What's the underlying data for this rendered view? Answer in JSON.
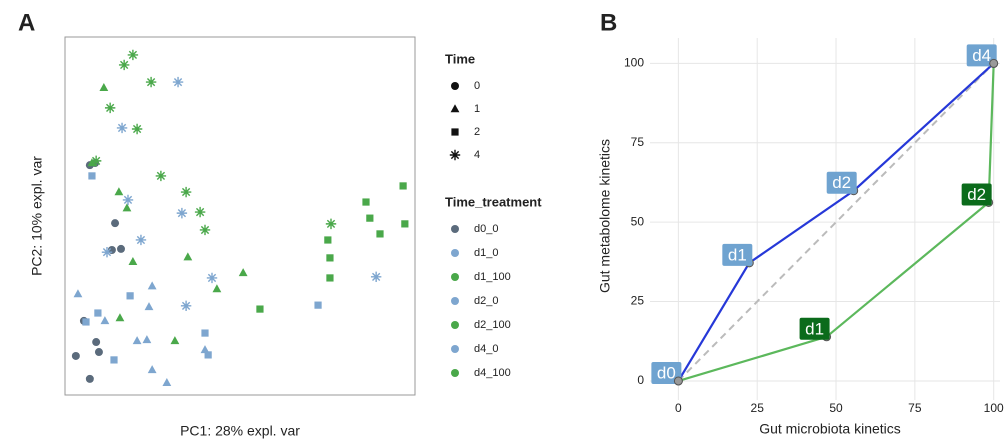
{
  "chart_data": [
    {
      "type": "scatter",
      "panel_label": "A",
      "x_label": "PC1: 28% expl. var",
      "y_label": "PC2: 10% expl. var",
      "xlim": [
        0,
        100
      ],
      "ylim": [
        0,
        100
      ],
      "shape_legend": {
        "title": "Time",
        "items": [
          {
            "label": "0",
            "marker": "circle"
          },
          {
            "label": "1",
            "marker": "triangle"
          },
          {
            "label": "2",
            "marker": "square"
          },
          {
            "label": "4",
            "marker": "asterisk"
          }
        ]
      },
      "legend_title": "Time_treatment",
      "series": [
        {
          "name": "d0_0",
          "color": "#5b6b7c",
          "marker": "circle",
          "x": [
            7.1,
            8.6,
            14.3,
            13.4,
            16.0,
            5.4,
            8.9,
            9.7,
            3.1,
            7.1
          ],
          "values": [
            64.2,
            64.8,
            48.0,
            40.5,
            40.8,
            20.7,
            14.8,
            12.0,
            10.9,
            4.5
          ]
        },
        {
          "name": "d1_0",
          "color": "#7ea6cf",
          "marker": "triangle",
          "x": [
            3.7,
            11.4,
            24.9,
            24.0,
            23.4,
            20.6,
            40.0,
            24.9,
            29.1
          ],
          "values": [
            28.2,
            20.7,
            30.4,
            24.6,
            15.4,
            15.1,
            12.6,
            7.0,
            3.4
          ]
        },
        {
          "name": "d1_100",
          "color": "#4aa84a",
          "marker": "triangle",
          "x": [
            11.1,
            7.7,
            15.4,
            17.7,
            19.4,
            35.1,
            43.4,
            50.9,
            31.4,
            15.7
          ],
          "values": [
            85.8,
            64.8,
            56.7,
            52.2,
            37.2,
            38.5,
            29.6,
            34.1,
            15.1,
            21.5
          ]
        },
        {
          "name": "d2_0",
          "color": "#7ea6cf",
          "marker": "square",
          "x": [
            7.7,
            9.4,
            6.0,
            18.6,
            14.0,
            40.0,
            40.9,
            72.3
          ],
          "values": [
            61.2,
            22.9,
            20.4,
            27.7,
            9.8,
            17.3,
            11.2,
            25.1
          ]
        },
        {
          "name": "d2_100",
          "color": "#4aa84a",
          "marker": "square",
          "x": [
            55.7,
            75.1,
            75.7,
            75.7,
            86.0,
            87.1,
            90.0,
            96.6,
            97.1
          ],
          "values": [
            24.0,
            43.3,
            38.3,
            32.7,
            53.9,
            49.4,
            45.0,
            58.4,
            47.8
          ]
        },
        {
          "name": "d4_0",
          "color": "#7ea6cf",
          "marker": "asterisk",
          "x": [
            32.3,
            16.3,
            18.0,
            21.7,
            12.0,
            33.4,
            42.0,
            34.6,
            88.9
          ],
          "values": [
            87.4,
            74.6,
            54.5,
            43.3,
            39.9,
            50.8,
            32.7,
            24.9,
            33.0
          ]
        },
        {
          "name": "d4_100",
          "color": "#4aa84a",
          "marker": "asterisk",
          "x": [
            19.4,
            16.9,
            24.6,
            12.9,
            20.6,
            27.4,
            34.6,
            38.6,
            40.0,
            76.0,
            8.9
          ],
          "values": [
            95.0,
            92.2,
            87.4,
            80.2,
            74.3,
            61.2,
            56.7,
            51.1,
            46.1,
            47.8,
            65.4
          ]
        }
      ]
    },
    {
      "type": "line",
      "panel_label": "B",
      "x_label": "Gut microbiota kinetics",
      "y_label": "Gut metabolome kinetics",
      "xlim": [
        -9,
        102
      ],
      "ylim": [
        -6,
        108
      ],
      "xticks": [
        0,
        25,
        50,
        75,
        100
      ],
      "yticks": [
        0,
        25,
        50,
        75,
        100
      ],
      "grid": true,
      "diagonal": true,
      "series": [
        {
          "color": "#2638d8",
          "label_color": "#6fa3d0",
          "x": [
            0,
            22.5,
            55.6,
            100
          ],
          "values": [
            0,
            37.2,
            59.9,
            100
          ],
          "point_labels": [
            "d0",
            "d1",
            "d2",
            "d4"
          ]
        },
        {
          "color": "#5cb85c",
          "label_color": "#0b6b1b",
          "x": [
            0,
            47.0,
            98.4,
            100
          ],
          "values": [
            0,
            13.9,
            56.2,
            100
          ],
          "point_labels": [
            null,
            "d1",
            "d2",
            null
          ]
        }
      ]
    }
  ]
}
